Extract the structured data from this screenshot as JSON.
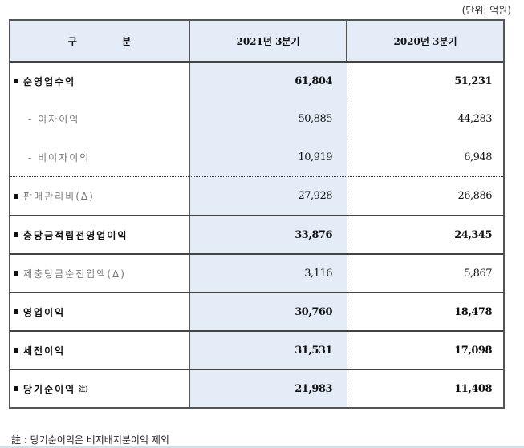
{
  "unit_label": "(단위: 억원)",
  "table": {
    "headers": [
      "구 분",
      "2021년 3분기",
      "2020년 3분기"
    ],
    "rows": [
      {
        "label": "순영업수익",
        "q3_2021": "61,804",
        "q3_2020": "51,231",
        "style": "bold",
        "bullet": true
      },
      {
        "label": "- 이자이익",
        "q3_2021": "50,885",
        "q3_2020": "44,283",
        "style": "sub"
      },
      {
        "label": "- 비이자이익",
        "q3_2021": "10,919",
        "q3_2020": "6,948",
        "style": "sub"
      },
      {
        "label": "판매관리비(Δ)",
        "q3_2021": "27,928",
        "q3_2020": "26,886",
        "style": "gray",
        "bullet": true
      },
      {
        "label": "충당금적립전영업이익",
        "q3_2021": "33,876",
        "q3_2020": "24,345",
        "style": "bold",
        "bullet": true
      },
      {
        "label": "제충당금순전입액(Δ)",
        "q3_2021": "3,116",
        "q3_2020": "5,867",
        "style": "gray",
        "bullet": true
      },
      {
        "label": "영업이익",
        "q3_2021": "30,760",
        "q3_2020": "18,478",
        "style": "bold",
        "bullet": true
      },
      {
        "label": "세전이익",
        "q3_2021": "31,531",
        "q3_2020": "17,098",
        "style": "bold",
        "bullet": true
      },
      {
        "label": "당기순이익",
        "label_sup": "注)",
        "q3_2021": "21,983",
        "q3_2020": "11,408",
        "style": "bold",
        "bullet": true
      }
    ]
  },
  "footnote": "註 : 당기순이익은 비지배지분이익 제외",
  "colors": {
    "header_bg": "#e4ecf7",
    "highlight_col_bg": "#e4ecf7",
    "border": "#555555",
    "gray_text": "#777777"
  }
}
